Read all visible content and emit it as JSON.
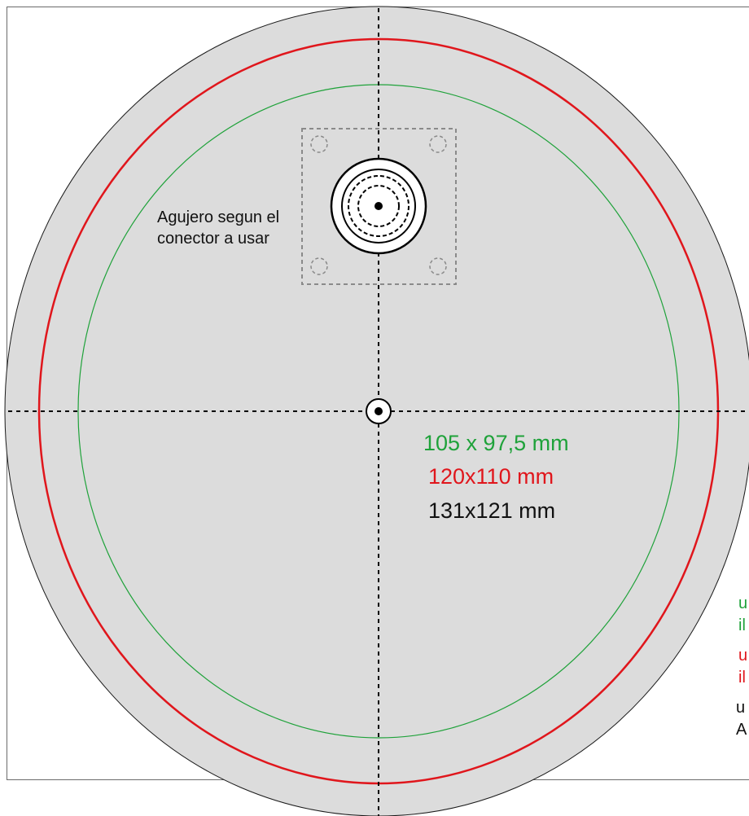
{
  "connector_note": {
    "line1": "Agujero segun el",
    "line2": "conector a usar"
  },
  "dimensions": {
    "green": "105 x 97,5 mm",
    "red": "120x110 mm",
    "black": "131x121 mm"
  },
  "side_notes": {
    "green": [
      "u",
      "il"
    ],
    "red": [
      "u",
      "il"
    ],
    "black": [
      "u",
      "A"
    ]
  },
  "colors": {
    "green": "#1fa23a",
    "red": "#e0161c",
    "black": "#111111",
    "plate_fill": "#dcdcdc",
    "dashed_gray": "#8a8a8a"
  }
}
